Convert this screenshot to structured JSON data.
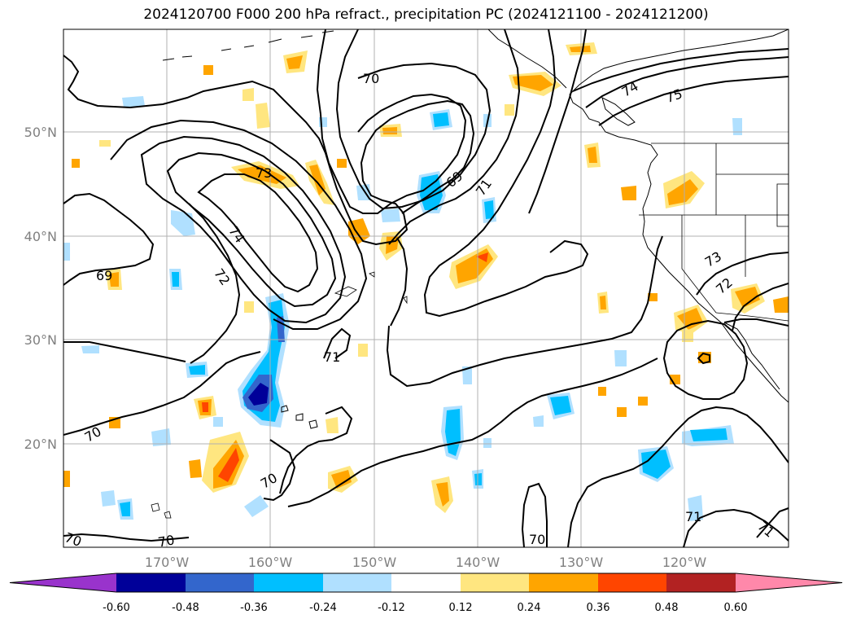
{
  "title": "2024120700 F000 200 hPa refract., precipitation PC (2024121100 - 2024121200)",
  "lat_labels": [
    "50°N",
    "40°N",
    "30°N",
    "20°N"
  ],
  "lon_labels": [
    "170°W",
    "160°W",
    "150°W",
    "140°W",
    "130°W",
    "120°W"
  ],
  "contour_labels": [
    "70",
    "73",
    "74",
    "72",
    "69",
    "69",
    "71",
    "71",
    "74",
    "75",
    "73",
    "72",
    "70",
    "70",
    "70",
    "70",
    "71",
    "71",
    "70"
  ],
  "colorbar": {
    "ticks": [
      "-0.60",
      "-0.48",
      "-0.36",
      "-0.24",
      "-0.12",
      "0.12",
      "0.24",
      "0.36",
      "0.48",
      "0.60"
    ],
    "colors": [
      "#9933cc",
      "#000099",
      "#3366cc",
      "#00bfff",
      "#b0e0ff",
      "#ffffff",
      "#ffe680",
      "#ffa500",
      "#ff4500",
      "#b22222",
      "#ff88aa"
    ]
  },
  "colors": {
    "gray_label": "#808080",
    "grid": "#b0b0b0",
    "contour": "#000000"
  }
}
